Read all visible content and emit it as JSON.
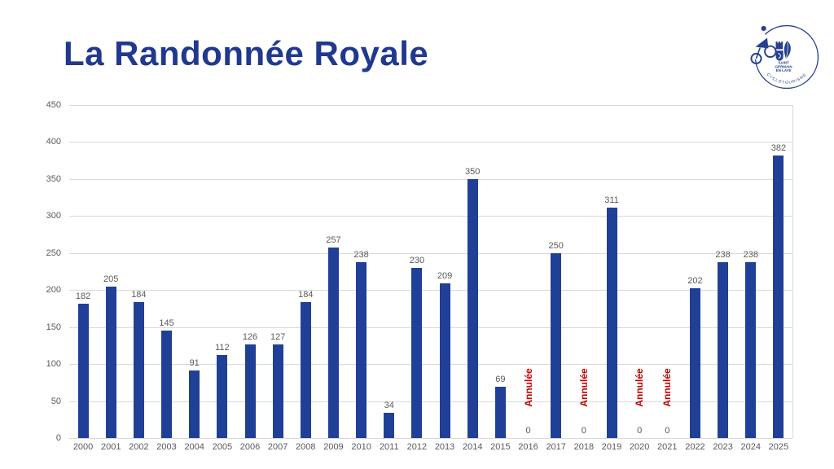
{
  "slide": {
    "title": "La Randonnée Royale",
    "title_color": "#20398F"
  },
  "logo": {
    "club_name_lines": [
      "SAINT",
      "GERMAIN",
      "EN LAYE"
    ],
    "arc_text": "CYCLOTOURISME",
    "color": "#25408F"
  },
  "chart_data": {
    "type": "bar",
    "categories": [
      "2000",
      "2001",
      "2002",
      "2003",
      "2004",
      "2005",
      "2006",
      "2007",
      "2008",
      "2009",
      "2010",
      "2011",
      "2012",
      "2013",
      "2014",
      "2015",
      "2016",
      "2017",
      "2018",
      "2019",
      "2020",
      "2021",
      "2022",
      "2023",
      "2024",
      "2025"
    ],
    "values": [
      182,
      205,
      184,
      145,
      91,
      112,
      126,
      127,
      184,
      257,
      238,
      34,
      230,
      209,
      350,
      69,
      0,
      250,
      0,
      311,
      0,
      0,
      202,
      238,
      238,
      382
    ],
    "title": "",
    "xlabel": "",
    "ylabel": "",
    "ylim": [
      0,
      450
    ],
    "ytick_step": 50,
    "grid": true,
    "legend": false,
    "annotations": {
      "cancelled_label": "Annulée",
      "cancelled_years": [
        "2016",
        "2018",
        "2020",
        "2021"
      ]
    },
    "bar_color": "#1F4096",
    "grid_color": "#D9D9D9",
    "tick_label_color": "#595959",
    "value_label_color": "#595959",
    "cancelled_color": "#C00000"
  }
}
